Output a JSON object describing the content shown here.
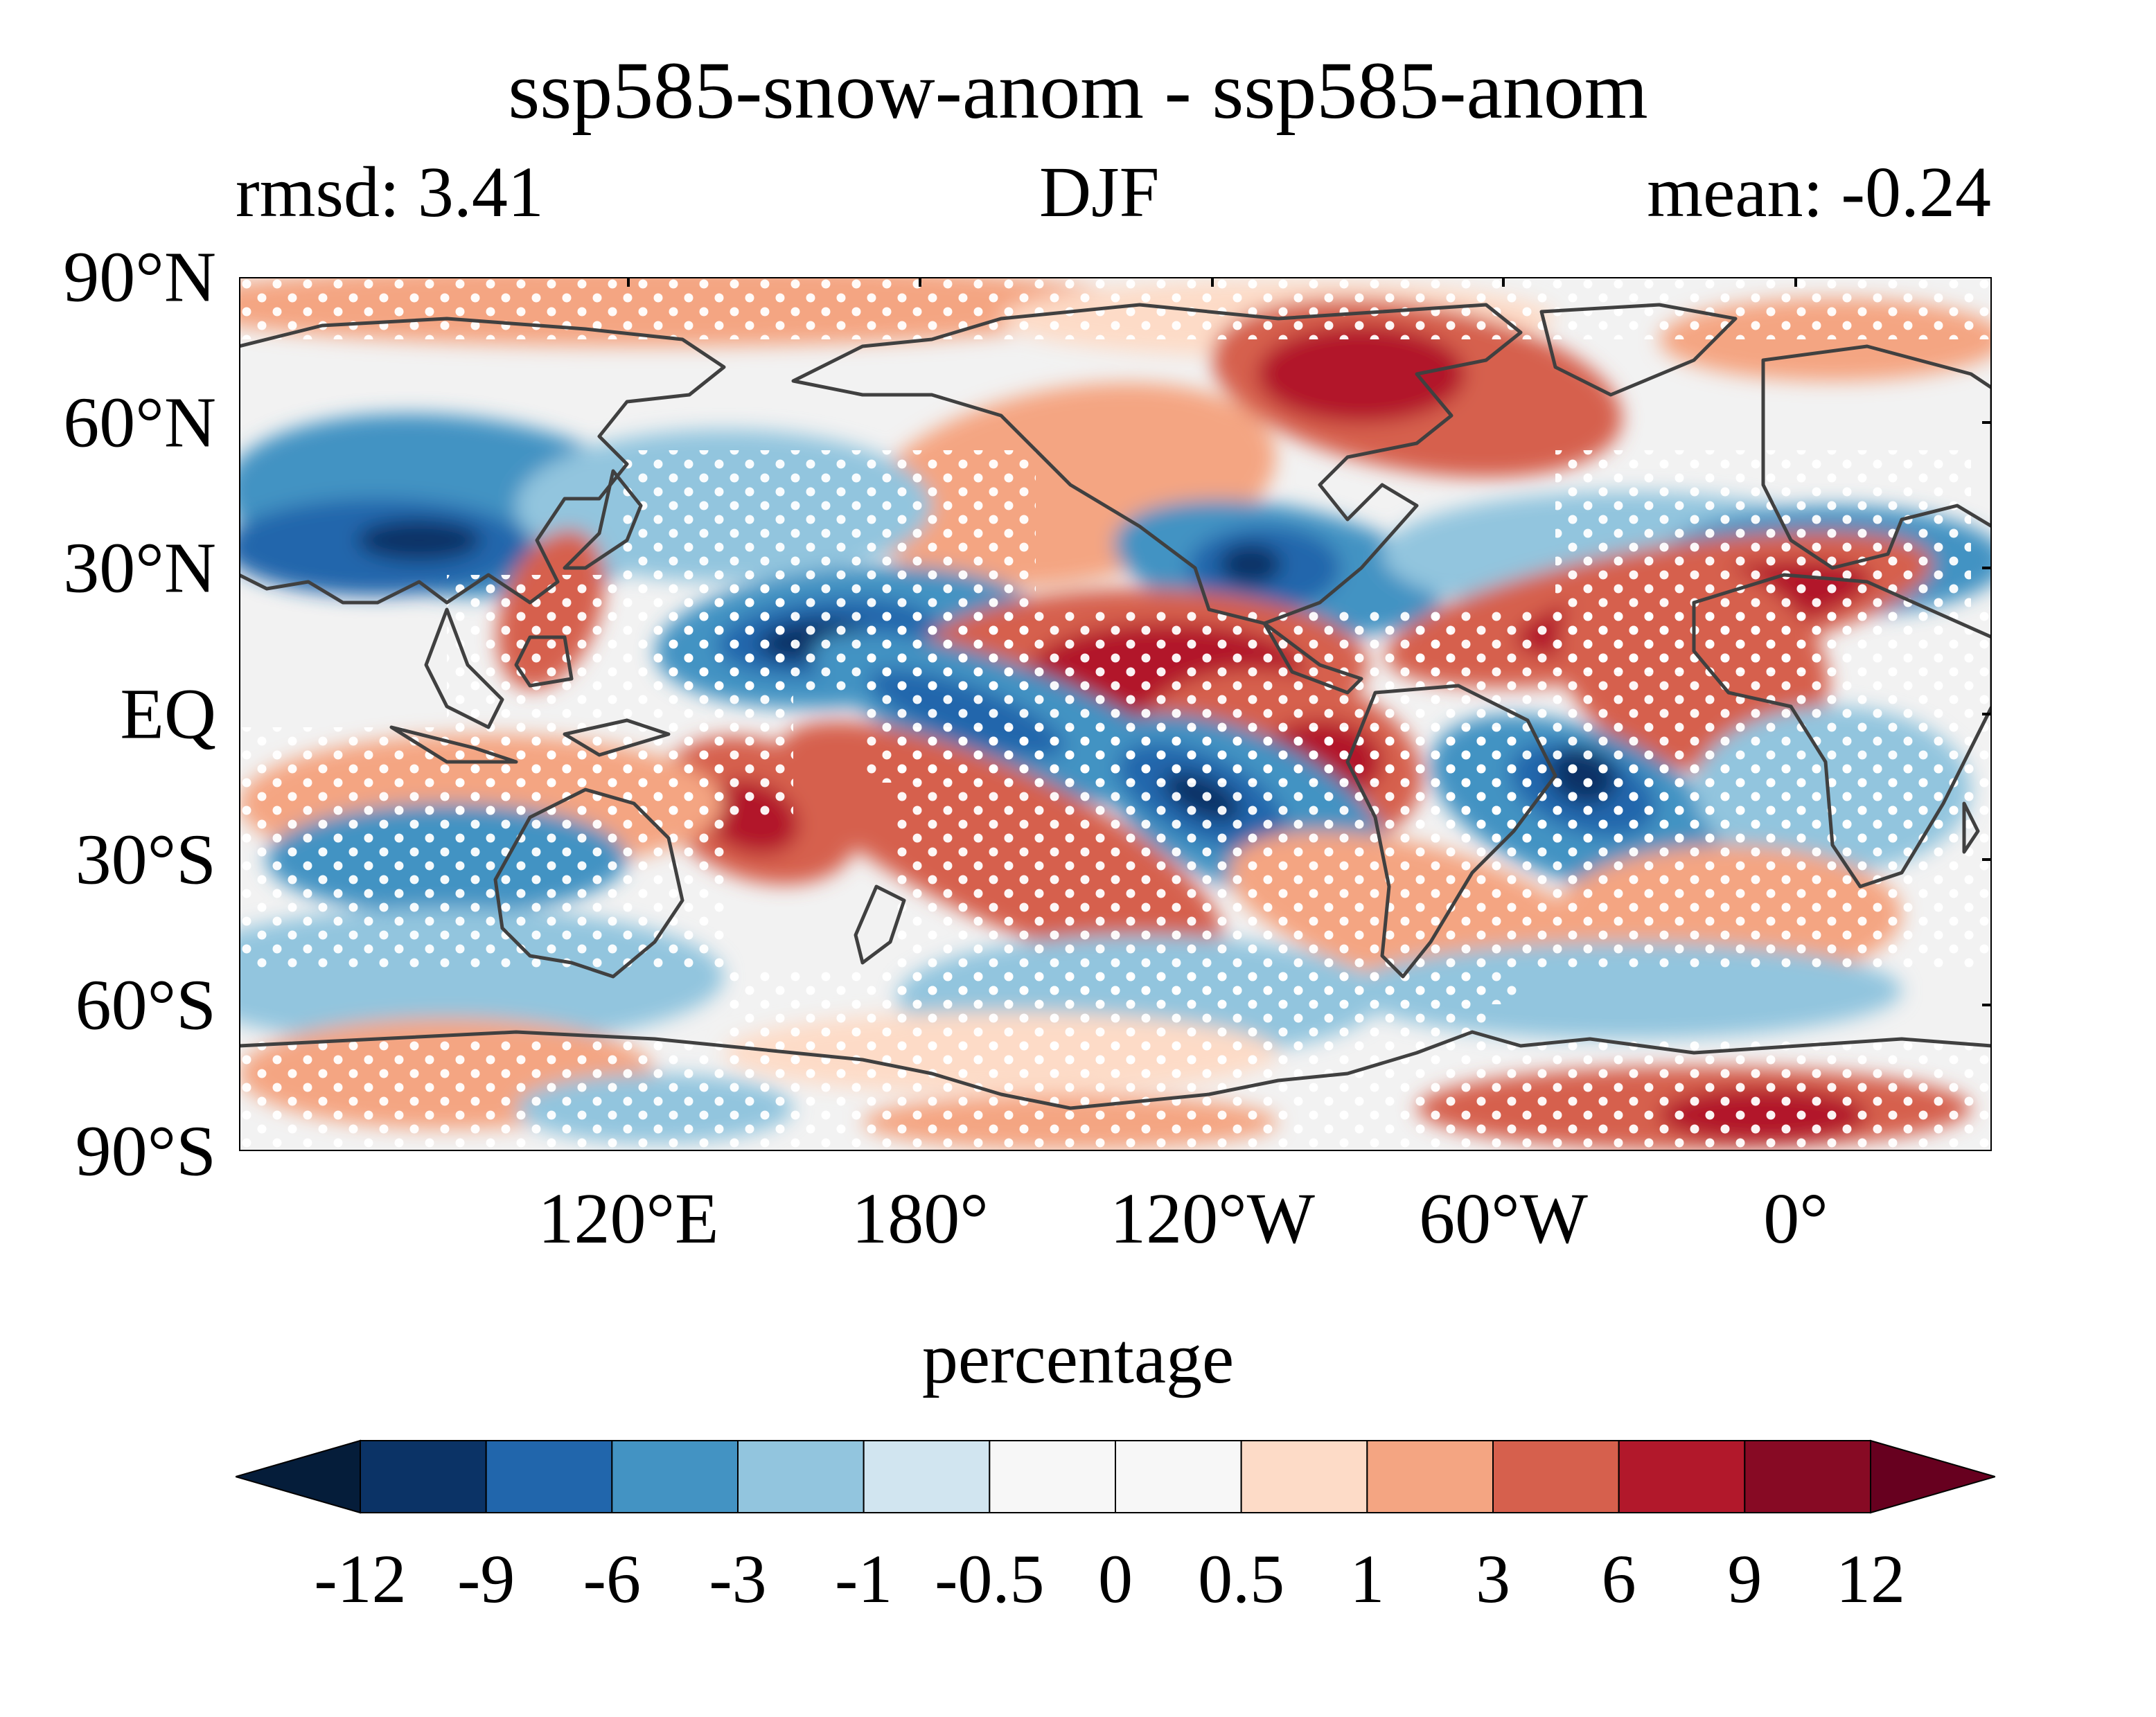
{
  "title": "ssp585-snow-anom - ssp585-anom",
  "subtitle": {
    "left": "rmsd: 3.41",
    "center": "DJF",
    "right": "mean: -0.24"
  },
  "map": {
    "projection": "PlateCarree (central longitude 80°W offset, spans ~20°E → ~20°E)",
    "lat_ticks": [
      "90°N",
      "60°N",
      "30°N",
      "EQ",
      "30°S",
      "60°S",
      "90°S"
    ],
    "lon_ticks": [
      "120°E",
      "180°",
      "120°W",
      "60°W",
      "0°"
    ],
    "stippling": "white dots mark significant regions",
    "coastline_color": "#404040"
  },
  "colorbar": {
    "label": "percentage",
    "levels": [
      "-12",
      "-9",
      "-6",
      "-3",
      "-1",
      "-0.5",
      "0",
      "0.5",
      "1",
      "3",
      "6",
      "9",
      "12"
    ],
    "colors": [
      "#0b3366",
      "#2166ac",
      "#4393c3",
      "#92c5de",
      "#d1e5f0",
      "#f7f7f7",
      "#f7f7f7",
      "#fddbc7",
      "#f4a582",
      "#d6604d",
      "#b2182b",
      "#870a24"
    ],
    "under_color": "#051d3a",
    "over_color": "#67001f",
    "extend": "both"
  },
  "chart_data": {
    "type": "heatmap",
    "title": "ssp585-snow-anom - ssp585-anom",
    "subtitle_left": "rmsd: 3.41",
    "subtitle_center": "DJF",
    "subtitle_right": "mean: -0.24",
    "colorbar_label": "percentage",
    "colorbar_levels": [
      -12,
      -9,
      -6,
      -3,
      -1,
      -0.5,
      0,
      0.5,
      1,
      3,
      6,
      9,
      12
    ],
    "ylim": [
      -90,
      90
    ],
    "grid": false
  }
}
